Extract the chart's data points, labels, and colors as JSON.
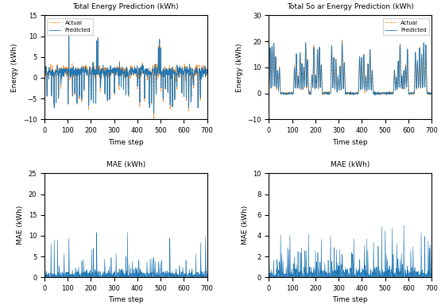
{
  "title_tl": "Total Energy Prediction (kWh)",
  "title_tr": "Total So ar Energy Prediction (kWh)",
  "title_bl": "MAE (kWh)",
  "title_br": "MAE (kWh)",
  "xlabel": "Time step",
  "ylabel_tl": "Energy (kWh)",
  "ylabel_tr": "Energy (kWh)",
  "ylabel_bl": "MAE (kWh)",
  "ylabel_br": "MAE (kWh)",
  "n_steps": 700,
  "ylim_tl": [
    -10,
    15
  ],
  "ylim_tr": [
    -10,
    30
  ],
  "ylim_bl": [
    0,
    25
  ],
  "ylim_br": [
    0,
    10
  ],
  "predicted_color": "#1f77b4",
  "actual_color": "#ff7f0e",
  "mae_color": "#1f77b4",
  "seed": 42,
  "figsize": [
    5.6,
    3.88
  ],
  "dpi": 100
}
